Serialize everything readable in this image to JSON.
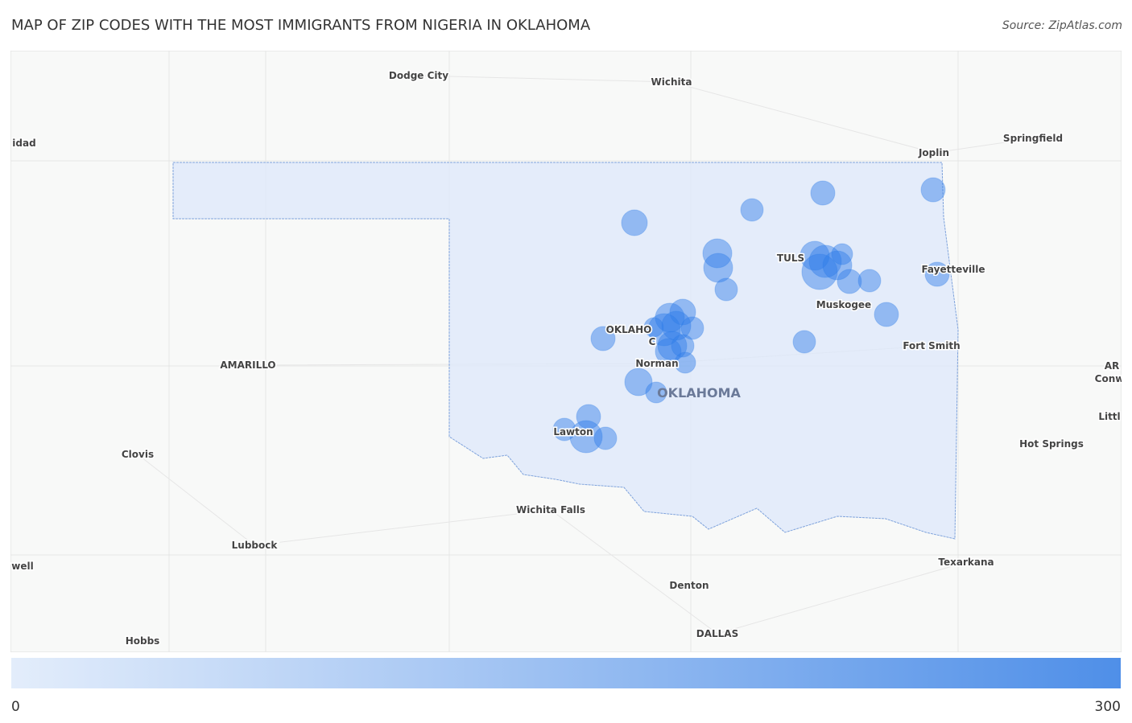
{
  "title": "MAP OF ZIP CODES WITH THE MOST IMMIGRANTS FROM NIGERIA IN OKLAHOMA",
  "source": "Source: ZipAtlas.com",
  "cities": [
    "Dodge City",
    "Wichita",
    "idad",
    "Springfield",
    "Joplin",
    "TULS",
    "Fayetteville",
    "Muskogee",
    "OKLAHO",
    "C",
    "Fort Smith",
    "AMARILLO",
    "Norman",
    "AR",
    "Conw",
    "OKLAHOMA",
    "Littl",
    "Lawton",
    "Hot Springs",
    "Clovis",
    "Wichita Falls",
    "Lubbock",
    "Texarkana",
    "well",
    "Denton",
    "DALLAS",
    "Hobbs"
  ],
  "zip_bubbles": [
    139,
    121,
    139,
    159,
    201,
    201,
    121,
    201,
    248,
    300,
    201,
    105,
    139,
    121,
    139,
    139,
    121,
    201,
    159,
    248,
    201,
    121,
    89,
    201,
    159,
    121,
    105,
    139,
    179,
    105,
    139,
    121,
    248,
    121
  ],
  "legend": {
    "min": 0,
    "max": 300
  }
}
